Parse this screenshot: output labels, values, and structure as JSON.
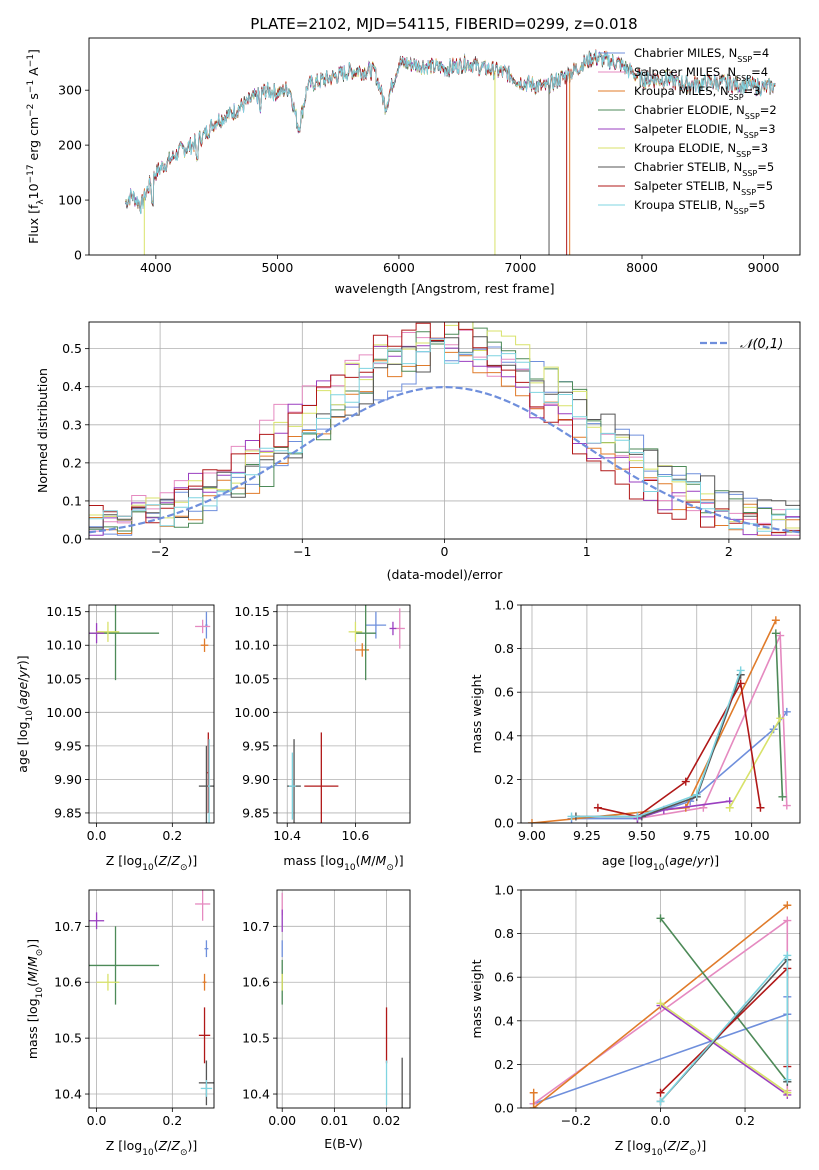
{
  "figure_title": "PLATE=2102, MJD=54115, FIBERID=0299, z=0.018",
  "colors": {
    "chabrier_miles": "#6f8fdc",
    "salpeter_miles": "#e58ac0",
    "kroupa_miles": "#e07b2a",
    "chabrier_elodie": "#4d8a58",
    "salpeter_elodie": "#9a3fc0",
    "kroupa_elodie": "#d8e26a",
    "chabrier_stelib": "#555555",
    "salpeter_stelib": "#b01818",
    "kroupa_stelib": "#7fd4e0",
    "normal_curve": "#6f8fdc"
  },
  "chart_data": [
    {
      "id": "spectrum",
      "type": "line",
      "xlabel": "wavelength [Angstrom, rest frame]",
      "ylabel": "Flux [f_λ10^-17 erg cm^-2 s^-1 A^-1]",
      "ylabel_parts": {
        "a": "Flux [f",
        "b": "λ",
        "c": "10",
        "d": "−17",
        "e": " erg cm",
        "f": "−2",
        "g": " s",
        "h": "−1",
        "i": " A",
        "j": "−1",
        "k": "]"
      },
      "xlim": [
        3450,
        9300
      ],
      "ylim": [
        0,
        395
      ],
      "xticks": [
        4000,
        5000,
        6000,
        7000,
        8000,
        9000
      ],
      "yticks": [
        0,
        100,
        200,
        300
      ],
      "x_range": [
        3750,
        9100
      ],
      "legend_placement": "right",
      "legend": [
        {
          "name": "Chabrier MILES, N",
          "sub": "SSP",
          "tail": "=4",
          "color_key": "chabrier_miles"
        },
        {
          "name": "Salpeter MILES, N",
          "sub": "SSP",
          "tail": "=4",
          "color_key": "salpeter_miles"
        },
        {
          "name": "Kroupa MILES, N",
          "sub": "SSP",
          "tail": "=3",
          "color_key": "kroupa_miles"
        },
        {
          "name": "Chabrier ELODIE, N",
          "sub": "SSP",
          "tail": "=2",
          "color_key": "chabrier_elodie"
        },
        {
          "name": "Salpeter ELODIE, N",
          "sub": "SSP",
          "tail": "=3",
          "color_key": "salpeter_elodie"
        },
        {
          "name": "Kroupa ELODIE, N",
          "sub": "SSP",
          "tail": "=3",
          "color_key": "kroupa_elodie"
        },
        {
          "name": "Chabrier STELIB, N",
          "sub": "SSP",
          "tail": "=5",
          "color_key": "chabrier_stelib"
        },
        {
          "name": "Salpeter STELIB, N",
          "sub": "SSP",
          "tail": "=5",
          "color_key": "salpeter_stelib"
        },
        {
          "name": "Kroupa STELIB, N",
          "sub": "SSP",
          "tail": "=5",
          "color_key": "kroupa_stelib"
        }
      ],
      "spectrum_anchor_points": [
        [
          3750,
          95
        ],
        [
          3800,
          110
        ],
        [
          3880,
          90
        ],
        [
          3950,
          130
        ],
        [
          4000,
          150
        ],
        [
          4100,
          170
        ],
        [
          4200,
          190
        ],
        [
          4300,
          200
        ],
        [
          4400,
          220
        ],
        [
          4500,
          245
        ],
        [
          4600,
          255
        ],
        [
          4700,
          270
        ],
        [
          4800,
          285
        ],
        [
          4900,
          300
        ],
        [
          5000,
          295
        ],
        [
          5100,
          305
        ],
        [
          5175,
          230
        ],
        [
          5250,
          310
        ],
        [
          5400,
          320
        ],
        [
          5600,
          335
        ],
        [
          5800,
          335
        ],
        [
          5890,
          270
        ],
        [
          6000,
          350
        ],
        [
          6200,
          345
        ],
        [
          6400,
          340
        ],
        [
          6563,
          350
        ],
        [
          6700,
          340
        ],
        [
          6900,
          330
        ],
        [
          7000,
          315
        ],
        [
          7200,
          305
        ],
        [
          7400,
          330
        ],
        [
          7600,
          360
        ],
        [
          7800,
          350
        ],
        [
          8000,
          320
        ],
        [
          8200,
          320
        ],
        [
          8400,
          310
        ],
        [
          8600,
          315
        ],
        [
          8800,
          310
        ],
        [
          9000,
          305
        ],
        [
          9100,
          308
        ]
      ],
      "dropout_lines": [
        {
          "x": 3905,
          "color_key": "kroupa_elodie"
        },
        {
          "x": 6790,
          "color_key": "kroupa_elodie"
        },
        {
          "x": 7235,
          "color_key": "chabrier_stelib"
        },
        {
          "x": 7380,
          "color_key": "salpeter_stelib"
        },
        {
          "x": 7405,
          "color_key": "kroupa_miles"
        }
      ]
    },
    {
      "id": "residuals",
      "type": "line",
      "xlabel": "(data-model)/error",
      "ylabel": "Normed distribution",
      "xlim": [
        -2.5,
        2.5
      ],
      "ylim": [
        0,
        0.57
      ],
      "xticks": [
        -2,
        -1,
        0,
        1,
        2
      ],
      "yticks": [
        0.0,
        0.1,
        0.2,
        0.3,
        0.4,
        0.5
      ],
      "grid": true,
      "legend_placement": "top-right",
      "normal_curve_label": "𝒩(0,1)",
      "bin_width": 0.1,
      "bin_start": -2.5,
      "series_order": [
        "chabrier_miles",
        "salpeter_miles",
        "kroupa_miles",
        "chabrier_elodie",
        "salpeter_elodie",
        "kroupa_elodie",
        "chabrier_stelib",
        "salpeter_stelib",
        "kroupa_stelib"
      ]
    },
    {
      "id": "age_vs_Z",
      "type": "scatter",
      "xlabel": "Z [log10(Z/Z⊙)]",
      "ylabel": "age [log10(age/yr)]",
      "xlim": [
        -0.02,
        0.31
      ],
      "ylim": [
        9.835,
        10.16
      ],
      "xticks": [
        0.0,
        0.2
      ],
      "yticks": [
        9.85,
        9.9,
        9.95,
        10.0,
        10.05,
        10.1,
        10.15
      ],
      "points": [
        {
          "x": 0.29,
          "y": 10.13,
          "xerr": 0.003,
          "yerr": 0.02,
          "color_key": "chabrier_miles"
        },
        {
          "x": 0.28,
          "y": 10.128,
          "xerr": 0.02,
          "yerr": 0.01,
          "color_key": "salpeter_miles"
        },
        {
          "x": 0.285,
          "y": 10.1,
          "xerr": 0.01,
          "yerr": 0.01,
          "color_key": "kroupa_miles"
        },
        {
          "x": 0.05,
          "y": 10.118,
          "xerr": 0.115,
          "yerr": 0.07,
          "color_key": "chabrier_elodie"
        },
        {
          "x": 0.0,
          "y": 10.118,
          "xerr": 0.02,
          "yerr": 0.015,
          "color_key": "salpeter_elodie"
        },
        {
          "x": 0.03,
          "y": 10.12,
          "xerr": 0.03,
          "yerr": 0.015,
          "color_key": "kroupa_elodie"
        },
        {
          "x": 0.29,
          "y": 9.89,
          "xerr": 0.02,
          "yerr": 0.06,
          "color_key": "chabrier_stelib"
        },
        {
          "x": 0.295,
          "y": 9.91,
          "xerr": 0.003,
          "yerr": 0.06,
          "color_key": "salpeter_stelib"
        },
        {
          "x": 0.297,
          "y": 9.89,
          "xerr": 0.003,
          "yerr": 0.07,
          "color_key": "kroupa_stelib"
        }
      ]
    },
    {
      "id": "age_vs_mass",
      "type": "scatter",
      "xlabel": "mass [log10(M/M⊙)]",
      "ylabel": "",
      "xlim": [
        10.37,
        10.76
      ],
      "ylim": [
        9.835,
        10.16
      ],
      "xticks": [
        10.4,
        10.6
      ],
      "yticks": [
        9.85,
        9.9,
        9.95,
        10.0,
        10.05,
        10.1,
        10.15
      ],
      "points": [
        {
          "x": 10.66,
          "y": 10.13,
          "xerr": 0.03,
          "yerr": 0.02,
          "color_key": "chabrier_miles"
        },
        {
          "x": 10.73,
          "y": 10.125,
          "xerr": 0.015,
          "yerr": 0.03,
          "color_key": "salpeter_miles"
        },
        {
          "x": 10.62,
          "y": 10.093,
          "xerr": 0.02,
          "yerr": 0.01,
          "color_key": "kroupa_miles"
        },
        {
          "x": 10.63,
          "y": 10.118,
          "xerr": 0.03,
          "yerr": 0.07,
          "color_key": "chabrier_elodie"
        },
        {
          "x": 10.71,
          "y": 10.125,
          "xerr": 0.01,
          "yerr": 0.01,
          "color_key": "salpeter_elodie"
        },
        {
          "x": 10.6,
          "y": 10.12,
          "xerr": 0.02,
          "yerr": 0.015,
          "color_key": "kroupa_elodie"
        },
        {
          "x": 10.42,
          "y": 9.89,
          "xerr": 0.02,
          "yerr": 0.07,
          "color_key": "chabrier_stelib"
        },
        {
          "x": 10.5,
          "y": 9.89,
          "xerr": 0.05,
          "yerr": 0.08,
          "color_key": "salpeter_stelib"
        },
        {
          "x": 10.415,
          "y": 9.89,
          "xerr": 0.01,
          "yerr": 0.05,
          "color_key": "kroupa_stelib"
        }
      ]
    },
    {
      "id": "weight_vs_age",
      "type": "line",
      "xlabel": "age [log10(age/yr)]",
      "ylabel": "mass weight",
      "xlim": [
        8.95,
        10.22
      ],
      "ylim": [
        0,
        1.0
      ],
      "xticks": [
        9.0,
        9.25,
        9.5,
        9.75,
        10.0
      ],
      "yticks": [
        0.0,
        0.2,
        0.4,
        0.6,
        0.8,
        1.0
      ],
      "grid": true,
      "series": [
        {
          "name": "",
          "color_key": "chabrier_miles",
          "points": [
            [
              9.18,
              0.02
            ],
            [
              9.48,
              0.02
            ],
            [
              9.72,
              0.1
            ],
            [
              10.1,
              0.43
            ],
            [
              10.16,
              0.51
            ]
          ]
        },
        {
          "name": "",
          "color_key": "salpeter_miles",
          "points": [
            [
              9.48,
              0.02
            ],
            [
              9.78,
              0.07
            ],
            [
              10.13,
              0.86
            ],
            [
              10.16,
              0.08
            ]
          ]
        },
        {
          "name": "",
          "color_key": "kroupa_miles",
          "points": [
            [
              9.0,
              0.0
            ],
            [
              9.7,
              0.07
            ],
            [
              10.11,
              0.93
            ]
          ]
        },
        {
          "name": "",
          "color_key": "chabrier_elodie",
          "points": [
            [
              10.11,
              0.87
            ],
            [
              10.14,
              0.12
            ]
          ]
        },
        {
          "name": "",
          "color_key": "salpeter_elodie",
          "points": [
            [
              9.48,
              0.02
            ],
            [
              9.6,
              0.06
            ],
            [
              9.9,
              0.1
            ]
          ]
        },
        {
          "name": "",
          "color_key": "kroupa_elodie",
          "points": [
            [
              9.9,
              0.07
            ],
            [
              10.13,
              0.48
            ]
          ]
        },
        {
          "name": "",
          "color_key": "chabrier_stelib",
          "points": [
            [
              9.2,
              0.03
            ],
            [
              9.5,
              0.03
            ],
            [
              9.75,
              0.12
            ],
            [
              9.95,
              0.68
            ]
          ]
        },
        {
          "name": "",
          "color_key": "salpeter_stelib",
          "points": [
            [
              9.3,
              0.07
            ],
            [
              9.48,
              0.03
            ],
            [
              9.7,
              0.19
            ],
            [
              9.95,
              0.64
            ],
            [
              10.04,
              0.07
            ]
          ]
        },
        {
          "name": "",
          "color_key": "kroupa_stelib",
          "points": [
            [
              9.18,
              0.03
            ],
            [
              9.48,
              0.03
            ],
            [
              9.75,
              0.13
            ],
            [
              9.95,
              0.7
            ]
          ]
        }
      ]
    },
    {
      "id": "mass_vs_Z",
      "type": "scatter",
      "xlabel": "Z [log10(Z/Z⊙)]",
      "ylabel": "mass [log10(M/M⊙)]",
      "xlim": [
        -0.02,
        0.31
      ],
      "ylim": [
        10.375,
        10.765
      ],
      "xticks": [
        0.0,
        0.2
      ],
      "yticks": [
        10.4,
        10.5,
        10.6,
        10.7
      ],
      "points": [
        {
          "x": 0.29,
          "y": 10.66,
          "xerr": 0.005,
          "yerr": 0.015,
          "color_key": "chabrier_miles"
        },
        {
          "x": 0.28,
          "y": 10.74,
          "xerr": 0.02,
          "yerr": 0.03,
          "color_key": "salpeter_miles"
        },
        {
          "x": 0.285,
          "y": 10.6,
          "xerr": 0.005,
          "yerr": 0.015,
          "color_key": "kroupa_miles"
        },
        {
          "x": 0.05,
          "y": 10.63,
          "xerr": 0.115,
          "yerr": 0.07,
          "color_key": "chabrier_elodie"
        },
        {
          "x": 0.0,
          "y": 10.71,
          "xerr": 0.02,
          "yerr": 0.015,
          "color_key": "salpeter_elodie"
        },
        {
          "x": 0.03,
          "y": 10.6,
          "xerr": 0.03,
          "yerr": 0.015,
          "color_key": "kroupa_elodie"
        },
        {
          "x": 0.29,
          "y": 10.42,
          "xerr": 0.02,
          "yerr": 0.04,
          "color_key": "chabrier_stelib"
        },
        {
          "x": 0.285,
          "y": 10.505,
          "xerr": 0.015,
          "yerr": 0.05,
          "color_key": "salpeter_stelib"
        },
        {
          "x": 0.29,
          "y": 10.41,
          "xerr": 0.015,
          "yerr": 0.015,
          "color_key": "kroupa_stelib"
        }
      ]
    },
    {
      "id": "mass_vs_ebv",
      "type": "scatter",
      "xlabel": "E(B-V)",
      "ylabel": "",
      "xlim": [
        -0.001,
        0.0245
      ],
      "ylim": [
        10.375,
        10.765
      ],
      "xticks": [
        0.0,
        0.01,
        0.02
      ],
      "yticks": [
        10.4,
        10.5,
        10.6,
        10.7
      ],
      "points": [
        {
          "x": 0.0,
          "y": 10.66,
          "xerr": 0.0,
          "yerr": 0.015,
          "color_key": "chabrier_miles"
        },
        {
          "x": 0.0,
          "y": 10.74,
          "xerr": 0.0,
          "yerr": 0.02,
          "color_key": "salpeter_miles"
        },
        {
          "x": 0.0,
          "y": 10.6,
          "xerr": 0.0,
          "yerr": 0.015,
          "color_key": "kroupa_miles"
        },
        {
          "x": 0.0,
          "y": 10.6,
          "xerr": 0.0,
          "yerr": 0.04,
          "color_key": "chabrier_elodie"
        },
        {
          "x": 0.0,
          "y": 10.71,
          "xerr": 0.0,
          "yerr": 0.02,
          "color_key": "salpeter_elodie"
        },
        {
          "x": 0.0,
          "y": 10.6,
          "xerr": 0.0,
          "yerr": 0.015,
          "color_key": "kroupa_elodie"
        },
        {
          "x": 0.023,
          "y": 10.42,
          "xerr": 0.0,
          "yerr": 0.045,
          "color_key": "chabrier_stelib"
        },
        {
          "x": 0.02,
          "y": 10.505,
          "xerr": 0.0,
          "yerr": 0.05,
          "color_key": "salpeter_stelib"
        },
        {
          "x": 0.02,
          "y": 10.42,
          "xerr": 0.0,
          "yerr": 0.04,
          "color_key": "kroupa_stelib"
        }
      ]
    },
    {
      "id": "weight_vs_Z",
      "type": "line",
      "xlabel": "Z [log10(Z/Z⊙)]",
      "ylabel": "mass weight",
      "xlim": [
        -0.33,
        0.33
      ],
      "ylim": [
        0,
        1.0
      ],
      "xticks": [
        -0.2,
        0.0,
        0.2
      ],
      "yticks": [
        0.0,
        0.2,
        0.4,
        0.6,
        0.8,
        1.0
      ],
      "grid": true,
      "series": [
        {
          "name": "",
          "color_key": "chabrier_miles",
          "points": [
            [
              -0.3,
              0.02
            ],
            [
              0.3,
              0.43
            ],
            [
              0.3,
              0.51
            ]
          ]
        },
        {
          "name": "",
          "color_key": "salpeter_miles",
          "points": [
            [
              -0.3,
              0.02
            ],
            [
              0.3,
              0.86
            ],
            [
              0.3,
              0.08
            ]
          ]
        },
        {
          "name": "",
          "color_key": "kroupa_miles",
          "points": [
            [
              -0.3,
              0.07
            ],
            [
              -0.3,
              0.0
            ],
            [
              0.3,
              0.93
            ]
          ]
        },
        {
          "name": "",
          "color_key": "chabrier_elodie",
          "points": [
            [
              0.0,
              0.87
            ],
            [
              0.3,
              0.12
            ]
          ]
        },
        {
          "name": "",
          "color_key": "salpeter_elodie",
          "points": [
            [
              0.0,
              0.47
            ],
            [
              0.3,
              0.06
            ]
          ]
        },
        {
          "name": "",
          "color_key": "kroupa_elodie",
          "points": [
            [
              0.0,
              0.48
            ],
            [
              0.3,
              0.07
            ]
          ]
        },
        {
          "name": "",
          "color_key": "chabrier_stelib",
          "points": [
            [
              0.0,
              0.03
            ],
            [
              0.3,
              0.68
            ],
            [
              0.3,
              0.12
            ]
          ]
        },
        {
          "name": "",
          "color_key": "salpeter_stelib",
          "points": [
            [
              0.0,
              0.07
            ],
            [
              0.3,
              0.64
            ],
            [
              0.3,
              0.19
            ]
          ]
        },
        {
          "name": "",
          "color_key": "kroupa_stelib",
          "points": [
            [
              0.0,
              0.03
            ],
            [
              0.3,
              0.7
            ],
            [
              0.3,
              0.13
            ]
          ]
        }
      ]
    }
  ]
}
